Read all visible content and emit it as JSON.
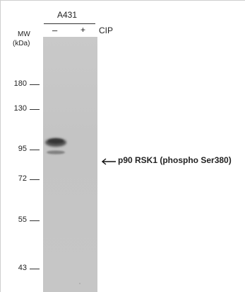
{
  "sample": {
    "cell_line": "A431",
    "lanes": [
      "–",
      "+"
    ],
    "treatment": "CIP"
  },
  "mw_axis": {
    "label": "MW",
    "unit": "(kDa)",
    "markers": [
      "180",
      "130",
      "95",
      "72",
      "55",
      "43"
    ]
  },
  "annotation": {
    "label": "p90 RSK1 (phospho Ser380)"
  },
  "colors": {
    "membrane": "#c6c6c6",
    "band": "#4a4a4a",
    "text": "#222222"
  }
}
